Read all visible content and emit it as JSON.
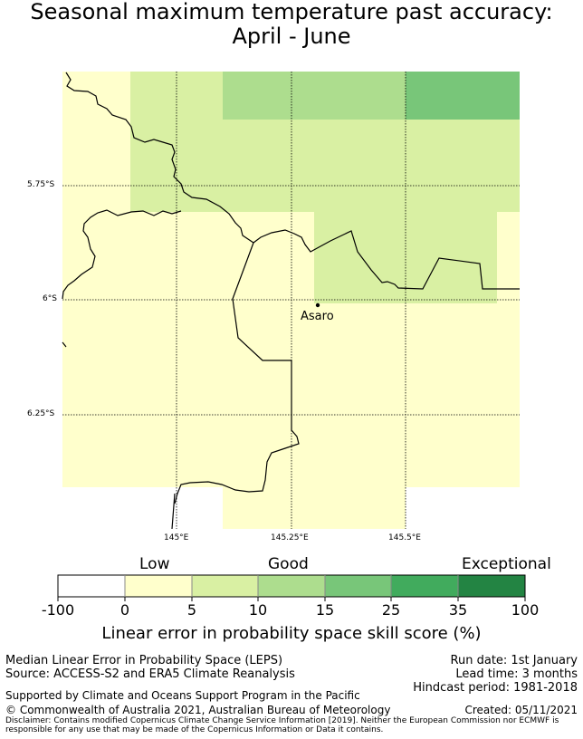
{
  "title": {
    "line1": "Seasonal maximum temperature past accuracy:",
    "line2": "April - June"
  },
  "map": {
    "lat_labels": [
      "5.75°S",
      "6°S",
      "6.25°S"
    ],
    "lon_labels": [
      "145°E",
      "145.25°E",
      "145.5°E"
    ],
    "place": "Asaro",
    "colors": {
      "0_5": "#ffffcc",
      "5_10": "#d9f0a3",
      "10_15": "#addd8e",
      "15_25": "#78c679",
      "25_35": "#41ab5d",
      "35_100": "#238443"
    }
  },
  "colorbar": {
    "categories": {
      "low": "Low",
      "good": "Good",
      "exceptional": "Exceptional"
    },
    "ticks": [
      "-100",
      "0",
      "5",
      "10",
      "15",
      "25",
      "35",
      "100"
    ],
    "colors": [
      "#ffffff",
      "#ffffcc",
      "#d9f0a3",
      "#addd8e",
      "#78c679",
      "#41ab5d",
      "#238443"
    ],
    "label": "Linear error in probability space skill score (%)"
  },
  "footer": {
    "method": "Median Linear Error in Probability Space (LEPS)",
    "source": "Source: ACCESS-S2 and ERA5 Climate Reanalysis",
    "run_date": "Run date: 1st January",
    "lead_time": "Lead time: 3 months",
    "hindcast": "Hindcast period: 1981-2018",
    "supported": "Supported by Climate and Oceans Support Program in the Pacific",
    "copyright": "© Commonwealth of Australia 2021, Australian Bureau of Meteorology",
    "created": "Created: 05/11/2021",
    "disclaimer": "Disclaimer: Contains modified Copernicus Climate Change Service Information [2019]. Neither the European Commission nor ECMWF is responsible for any use that may be made of the Copernicus Information or Data it contains."
  }
}
